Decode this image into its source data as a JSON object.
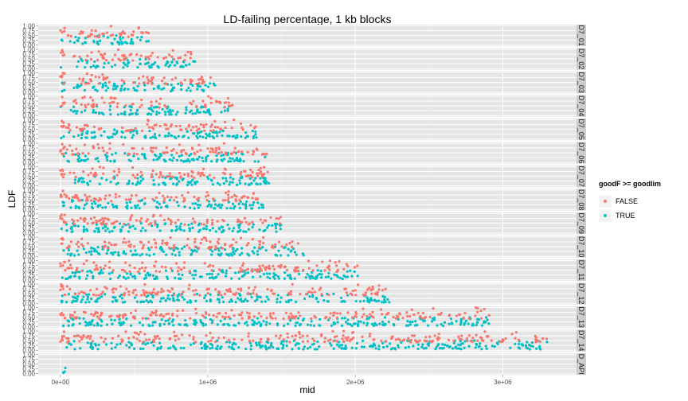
{
  "chart_data": {
    "type": "scatter",
    "title": "LD-failing percentage,  1 kb blocks",
    "xlabel": "mid",
    "ylabel": "LDF",
    "xlim": [
      -150000,
      3500000
    ],
    "ylim": [
      0,
      1
    ],
    "x_ticks": [
      0,
      1000000,
      2000000,
      3000000
    ],
    "x_tick_labels": [
      "0e+00",
      "1e+06",
      "2e+06",
      "3e+06"
    ],
    "y_ticks": [
      0,
      0.25,
      0.5,
      0.75,
      1.0
    ],
    "y_tick_labels": [
      "0.00",
      "0.25",
      "0.50",
      "0.75",
      "1.00"
    ],
    "grid": true,
    "legend": {
      "title": "goodF >= goodlim",
      "position": "right",
      "entries": [
        {
          "label": "FALSE",
          "color": "#F8766D"
        },
        {
          "label": "TRUE",
          "color": "#00BFC4"
        }
      ]
    },
    "facets": [
      {
        "label": "D7_01",
        "x_range": [
          0,
          600000
        ],
        "gaps": []
      },
      {
        "label": "D7_02",
        "x_range": [
          0,
          920000
        ],
        "gaps": [
          [
            20000,
            90000
          ]
        ]
      },
      {
        "label": "D7_03",
        "x_range": [
          0,
          1050000
        ],
        "gaps": [
          [
            30000,
            90000
          ]
        ]
      },
      {
        "label": "D7_04",
        "x_range": [
          0,
          1180000
        ],
        "gaps": [
          [
            30000,
            70000
          ],
          [
            560000,
            590000
          ]
        ]
      },
      {
        "label": "D7_05",
        "x_range": [
          0,
          1330000
        ],
        "gaps": []
      },
      {
        "label": "D7_06",
        "x_range": [
          0,
          1400000
        ],
        "gaps": []
      },
      {
        "label": "D7_07",
        "x_range": [
          0,
          1420000
        ],
        "gaps": [
          [
            20000,
            60000
          ],
          [
            580000,
            610000
          ]
        ]
      },
      {
        "label": "D7_08",
        "x_range": [
          0,
          1380000
        ],
        "gaps": []
      },
      {
        "label": "D7_09",
        "x_range": [
          0,
          1500000
        ],
        "gaps": []
      },
      {
        "label": "D7_10",
        "x_range": [
          0,
          1650000
        ],
        "gaps": []
      },
      {
        "label": "D7_11",
        "x_range": [
          0,
          2020000
        ],
        "gaps": []
      },
      {
        "label": "D7_12",
        "x_range": [
          0,
          2240000
        ],
        "gaps": []
      },
      {
        "label": "D7_13",
        "x_range": [
          0,
          2920000
        ],
        "gaps": []
      },
      {
        "label": "D7_14",
        "x_range": [
          0,
          3300000
        ],
        "gaps": []
      },
      {
        "label": "D_API",
        "x_range": [
          0,
          40000
        ],
        "gaps": []
      }
    ]
  }
}
